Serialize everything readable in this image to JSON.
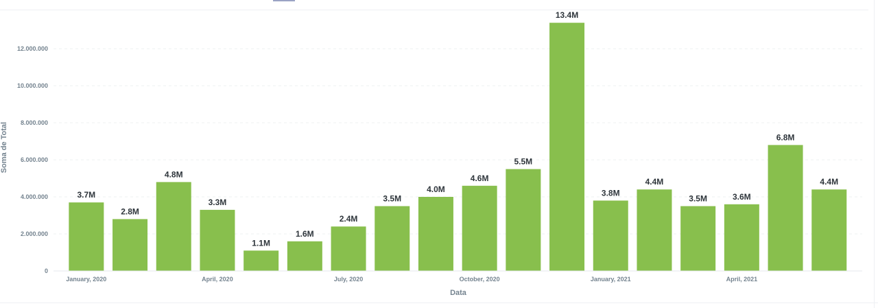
{
  "chart_data": {
    "type": "bar",
    "title": "",
    "xlabel": "Data",
    "ylabel": "Soma de Total",
    "ylim": [
      0,
      13400000
    ],
    "yticks": [
      0,
      2000000,
      4000000,
      6000000,
      8000000,
      10000000,
      12000000
    ],
    "ytick_labels": [
      "0",
      "2.000.000",
      "4.000.000",
      "6.000.000",
      "8.000.000",
      "10.000.000",
      "12.000.000"
    ],
    "grid": true,
    "bar_color": "#88bf4d",
    "categories": [
      "2020-01",
      "2020-02",
      "2020-03",
      "2020-04",
      "2020-05",
      "2020-06",
      "2020-07",
      "2020-08",
      "2020-09",
      "2020-10",
      "2020-11",
      "2020-12",
      "2021-01",
      "2021-02",
      "2021-03",
      "2021-04",
      "2021-05",
      "2021-06"
    ],
    "x_tick_labels": [
      {
        "index": 0,
        "label": "January, 2020"
      },
      {
        "index": 3,
        "label": "April, 2020"
      },
      {
        "index": 6,
        "label": "July, 2020"
      },
      {
        "index": 9,
        "label": "October, 2020"
      },
      {
        "index": 12,
        "label": "January, 2021"
      },
      {
        "index": 15,
        "label": "April, 2021"
      }
    ],
    "values": [
      3700000,
      2800000,
      4800000,
      3300000,
      1100000,
      1600000,
      2400000,
      3500000,
      4000000,
      4600000,
      5500000,
      13400000,
      3800000,
      4400000,
      3500000,
      3600000,
      6800000,
      4400000
    ],
    "data_labels": [
      "3.7M",
      "2.8M",
      "4.8M",
      "3.3M",
      "1.1M",
      "1.6M",
      "2.4M",
      "3.5M",
      "4.0M",
      "4.6M",
      "5.5M",
      "13.4M",
      "3.8M",
      "4.4M",
      "3.5M",
      "3.6M",
      "6.8M",
      "4.4M"
    ]
  }
}
